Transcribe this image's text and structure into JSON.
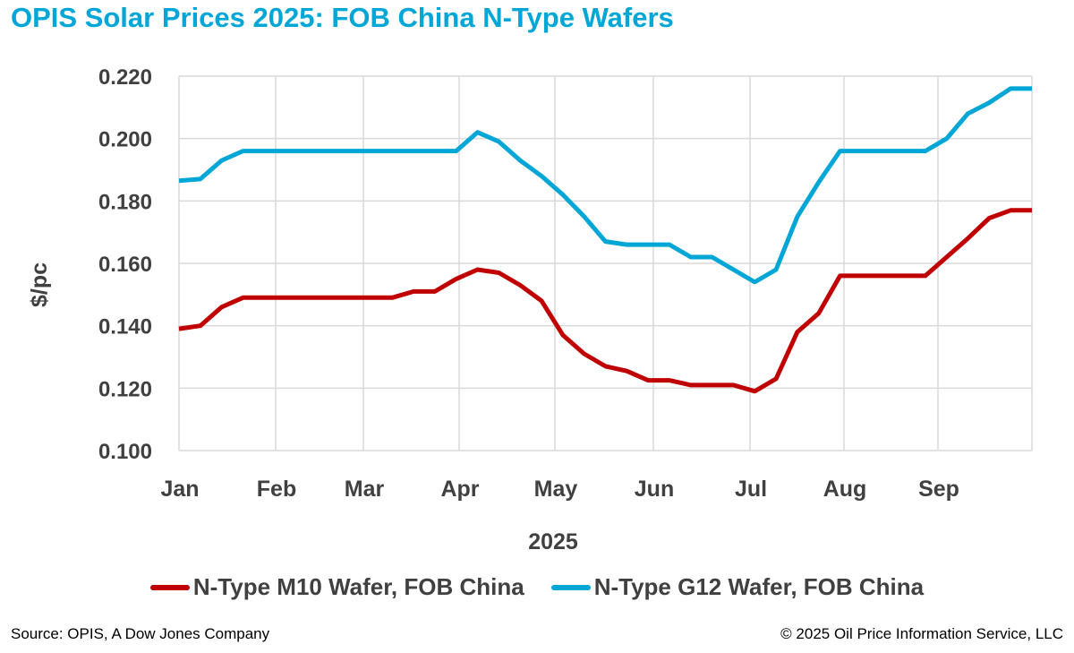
{
  "title": "OPIS Solar Prices 2025: FOB China N-Type Wafers",
  "source": "Source: OPIS, A Dow Jones Company",
  "copyright": "© 2025 Oil Price Information Service, LLC",
  "chart_data": {
    "type": "line",
    "title": "OPIS Solar Prices 2025: FOB China N-Type Wafers",
    "xlabel": "2025",
    "ylabel": "$/pc",
    "ylim": [
      0.1,
      0.22
    ],
    "yticks": [
      "0.100",
      "0.120",
      "0.140",
      "0.160",
      "0.180",
      "0.200",
      "0.220"
    ],
    "yticks_values": [
      0.1,
      0.12,
      0.14,
      0.16,
      0.18,
      0.2,
      0.22
    ],
    "xticks": [
      "Jan",
      "Feb",
      "Mar",
      "Apr",
      "May",
      "Jun",
      "Jul",
      "Aug",
      "Sep"
    ],
    "x_frequency": "weekly",
    "num_points": 41,
    "grid": true,
    "legend_position": "bottom",
    "series": [
      {
        "name": "N-Type M10 Wafer, FOB China",
        "color": "#c00000",
        "values": [
          0.139,
          0.14,
          0.146,
          0.149,
          0.149,
          0.149,
          0.149,
          0.149,
          0.149,
          0.149,
          0.149,
          0.151,
          0.151,
          0.155,
          0.158,
          0.157,
          0.153,
          0.148,
          0.137,
          0.131,
          0.127,
          0.1255,
          0.1225,
          0.1225,
          0.121,
          0.121,
          0.121,
          0.119,
          0.123,
          0.138,
          0.144,
          0.156,
          0.156,
          0.156,
          0.156,
          0.156,
          0.162,
          0.168,
          0.1745,
          0.177,
          0.177
        ]
      },
      {
        "name": "N-Type G12 Wafer, FOB China",
        "color": "#00a6d6",
        "values": [
          0.1865,
          0.187,
          0.193,
          0.196,
          0.196,
          0.196,
          0.196,
          0.196,
          0.196,
          0.196,
          0.196,
          0.196,
          0.196,
          0.196,
          0.202,
          0.199,
          0.193,
          0.188,
          0.182,
          0.175,
          0.167,
          0.166,
          0.166,
          0.166,
          0.162,
          0.162,
          0.158,
          0.154,
          0.158,
          0.175,
          0.186,
          0.196,
          0.196,
          0.196,
          0.196,
          0.196,
          0.2,
          0.208,
          0.2115,
          0.216,
          0.216
        ]
      }
    ]
  }
}
